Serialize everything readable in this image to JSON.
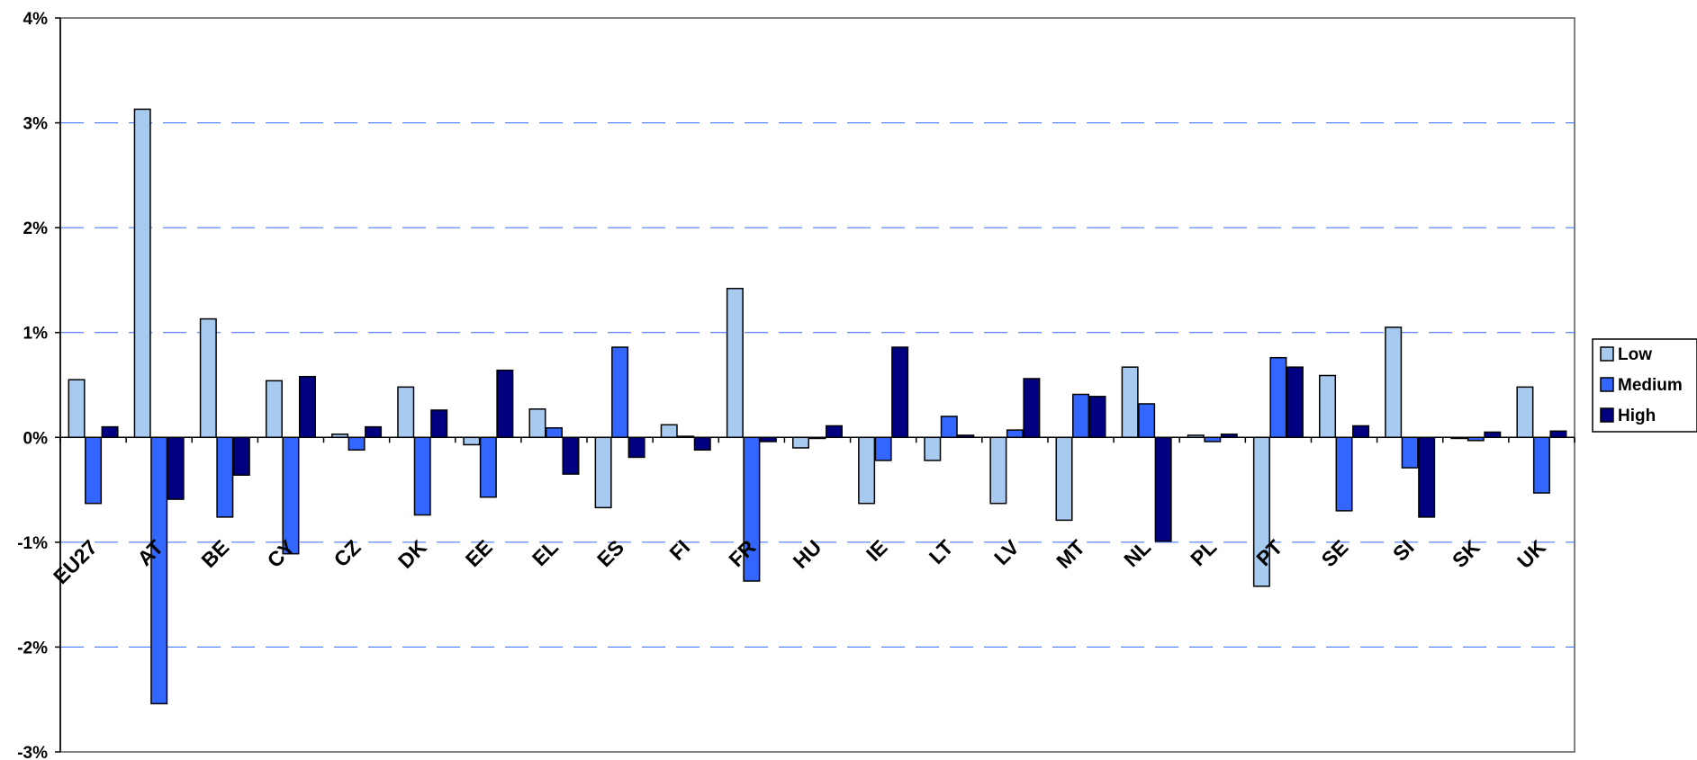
{
  "chart_data": {
    "type": "bar",
    "title": "",
    "xlabel": "",
    "ylabel": "",
    "ylim": [
      -3,
      4
    ],
    "y_ticks": [
      4,
      3,
      2,
      1,
      0,
      -1,
      -2,
      -3
    ],
    "y_tick_labels": [
      "4%",
      "3%",
      "2%",
      "1%",
      "0%",
      "-1%",
      "-2%",
      "-3%"
    ],
    "grid": "horizontal dashed",
    "legend_position": "right",
    "categories": [
      "EU27",
      "AT",
      "BE",
      "CY",
      "CZ",
      "DK",
      "EE",
      "EL",
      "ES",
      "FI",
      "FR",
      "HU",
      "IE",
      "LT",
      "LV",
      "MT",
      "NL",
      "PL",
      "PT",
      "SE",
      "SI",
      "SK",
      "UK"
    ],
    "series": [
      {
        "name": "Low",
        "color": "#a6caf0",
        "values": [
          0.55,
          3.13,
          1.13,
          0.54,
          0.03,
          0.48,
          -0.07,
          0.27,
          -0.67,
          0.12,
          1.42,
          -0.1,
          -0.63,
          -0.22,
          -0.63,
          -0.79,
          0.67,
          0.02,
          -1.42,
          0.59,
          1.05,
          -0.01,
          0.48
        ]
      },
      {
        "name": "Medium",
        "color": "#3366ff",
        "values": [
          -0.63,
          -2.54,
          -0.76,
          -1.11,
          -0.12,
          -0.74,
          -0.57,
          0.09,
          0.86,
          0.01,
          -1.37,
          -0.01,
          -0.22,
          0.2,
          0.07,
          0.41,
          0.32,
          -0.04,
          0.76,
          -0.7,
          -0.29,
          -0.03,
          -0.53
        ]
      },
      {
        "name": "High",
        "color": "#000080",
        "values": [
          0.1,
          -0.59,
          -0.36,
          0.58,
          0.1,
          0.26,
          0.64,
          -0.35,
          -0.19,
          -0.12,
          -0.04,
          0.11,
          0.86,
          0.02,
          0.56,
          0.39,
          -0.99,
          0.03,
          0.67,
          0.11,
          -0.76,
          0.05,
          0.06
        ]
      }
    ]
  }
}
